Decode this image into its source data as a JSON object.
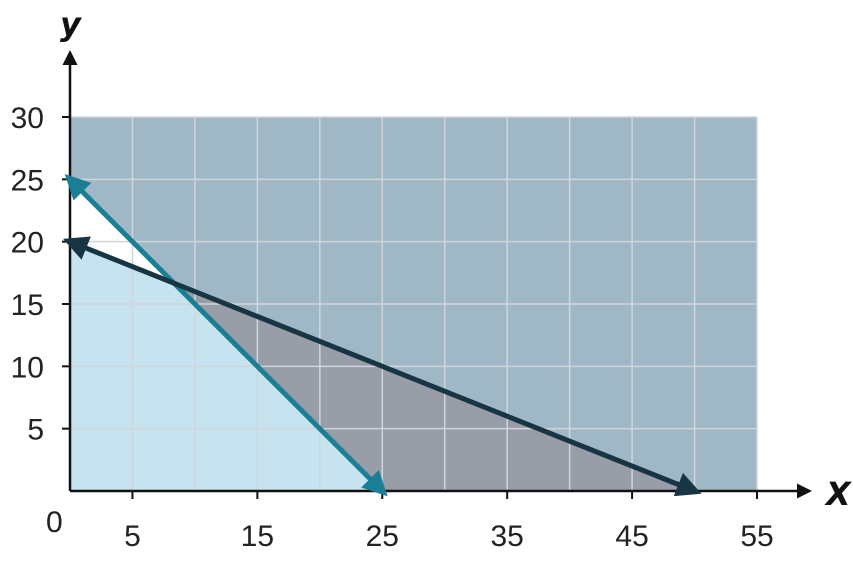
{
  "chart_data": {
    "type": "line",
    "xlabel": "X",
    "ylabel": "y",
    "origin_label": "0",
    "xlim": [
      0,
      55
    ],
    "ylim": [
      0,
      30
    ],
    "grid": true,
    "grid_x": [
      5,
      10,
      15,
      20,
      25,
      30,
      35,
      40,
      45,
      50,
      55
    ],
    "grid_y": [
      5,
      10,
      15,
      20,
      25,
      30
    ],
    "x_ticks": [
      5,
      15,
      25,
      35,
      45,
      55
    ],
    "y_ticks": [
      5,
      10,
      15,
      20,
      25,
      30
    ],
    "series": [
      {
        "color": "#1a7f95",
        "x": [
          0,
          25
        ],
        "y": [
          25,
          0
        ]
      },
      {
        "color": "#183544",
        "x": [
          0,
          50
        ],
        "y": [
          20,
          0
        ]
      }
    ],
    "regions": [
      {
        "color": "#a0b8c5",
        "polygon": [
          [
            0,
            30
          ],
          [
            55,
            30
          ],
          [
            55,
            0
          ],
          [
            0,
            0
          ]
        ]
      },
      {
        "color": "#989da8",
        "polygon": [
          [
            8.33,
            16.67
          ],
          [
            25,
            0
          ],
          [
            50,
            0
          ]
        ]
      },
      {
        "color": "#c6e3ef",
        "polygon": [
          [
            0,
            0
          ],
          [
            25,
            0
          ],
          [
            8.33,
            16.67
          ],
          [
            0,
            20
          ]
        ]
      },
      {
        "color": "#ffffff",
        "polygon": [
          [
            0,
            20
          ],
          [
            0,
            25
          ],
          [
            8.33,
            16.67
          ]
        ]
      }
    ]
  }
}
